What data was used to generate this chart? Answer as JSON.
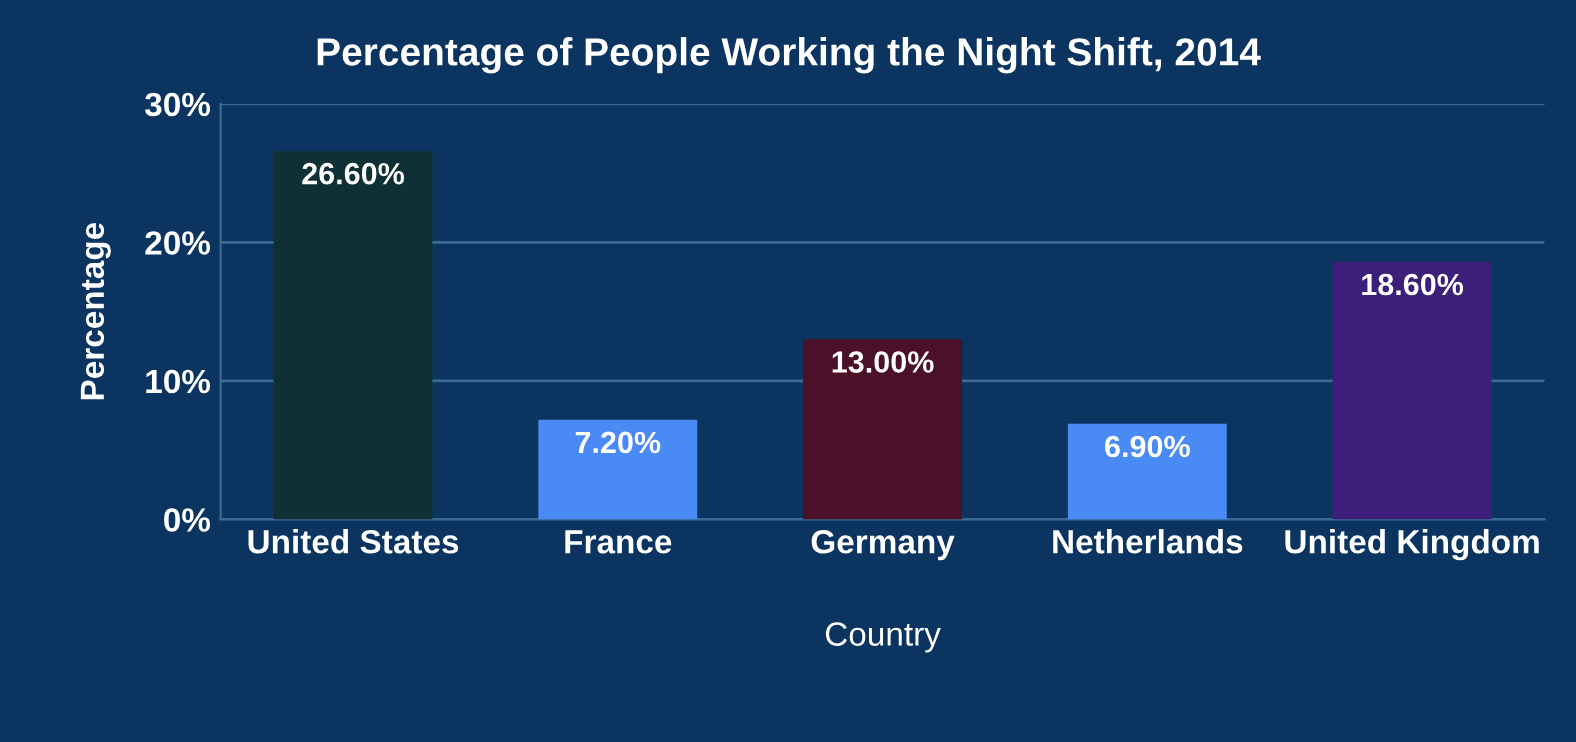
{
  "chart_data": {
    "type": "bar",
    "title": "Percentage of People Working the Night Shift, 2014",
    "xlabel": "Country",
    "ylabel": "Percentage",
    "categories": [
      "United States",
      "France",
      "Germany",
      "Netherlands",
      "United Kingdom"
    ],
    "values": [
      26.6,
      7.2,
      13.0,
      6.9,
      18.6
    ],
    "colors": [
      "#0f3136",
      "#4a8af4",
      "#4a1128",
      "#4a8af4",
      "#3b1f78"
    ],
    "value_labels": [
      "26.60%",
      "7.20%",
      "13.00%",
      "6.90%",
      "18.60%"
    ],
    "ylim": [
      0,
      30
    ],
    "yticks": [
      {
        "value": 0,
        "label": "0%"
      },
      {
        "value": 10,
        "label": "10%"
      },
      {
        "value": 20,
        "label": "20%"
      },
      {
        "value": 30,
        "label": "30%"
      }
    ],
    "grid": "y"
  }
}
